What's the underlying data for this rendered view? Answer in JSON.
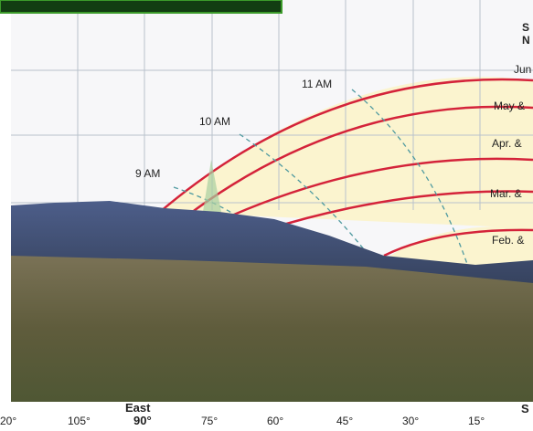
{
  "hour_labels": [
    "9 AM",
    "10 AM",
    "11 AM"
  ],
  "month_labels": [
    "Jun",
    "May &",
    "Apr. &",
    "Mar. &",
    "Feb. &"
  ],
  "corner_labels": [
    "S",
    "N"
  ],
  "axis": {
    "labels": [
      "20°",
      "105°",
      "90°",
      "75°",
      "60°",
      "45°",
      "30°",
      "15°",
      "S"
    ],
    "east": "East"
  }
}
